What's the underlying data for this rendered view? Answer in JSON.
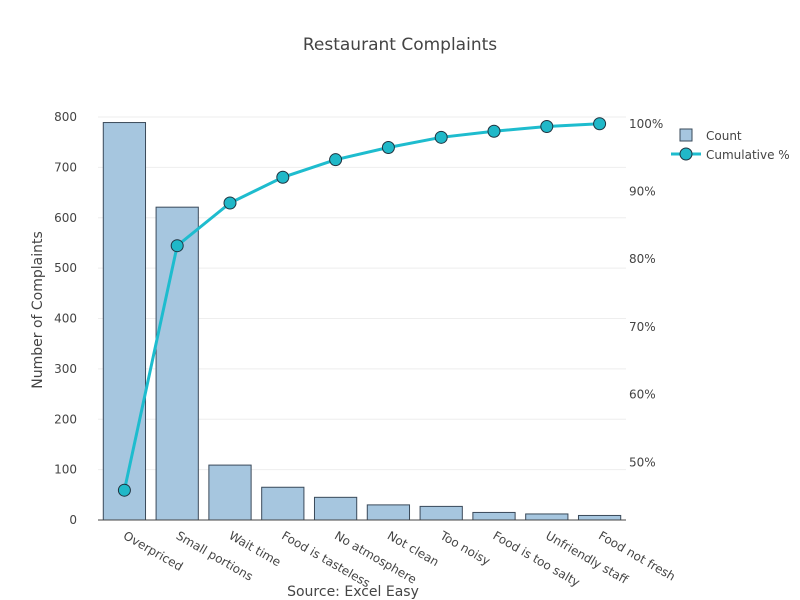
{
  "chart_data": {
    "type": "bar",
    "title": "Restaurant Complaints",
    "xlabel": "Source: Excel Easy",
    "ylabel": "Number of Complaints",
    "categories": [
      "Overpriced",
      "Small portions",
      "Wait time",
      "Food is tasteless",
      "No atmosphere",
      "Not clean",
      "Too noisy",
      "Food is too salty",
      "Unfriendly staff",
      "Food not fresh"
    ],
    "series": [
      {
        "name": "Count",
        "type": "bar",
        "axis": "left",
        "values": [
          789,
          621,
          109,
          65,
          45,
          30,
          27,
          15,
          12,
          9
        ]
      },
      {
        "name": "Cumulative %",
        "type": "line",
        "axis": "right",
        "values": [
          45.9,
          82.0,
          88.3,
          92.1,
          94.7,
          96.5,
          98.0,
          98.9,
          99.6,
          100.0
        ]
      }
    ],
    "ylim": [
      0,
      800
    ],
    "yticks": [
      0,
      100,
      200,
      300,
      400,
      500,
      600,
      700,
      800
    ],
    "y2lim": [
      41.5,
      101
    ],
    "y2ticks": [
      "50%",
      "60%",
      "70%",
      "80%",
      "90%",
      "100%"
    ],
    "y2tick_values": [
      50,
      60,
      70,
      80,
      90,
      100
    ],
    "grid": true,
    "legend": "top-right",
    "colors": {
      "bar_fill": "#a6c6df",
      "bar_stroke": "#3a4a5a",
      "line": "#1ebcce",
      "marker_fill": "#20b8c8",
      "marker_stroke": "#1f3340"
    }
  }
}
